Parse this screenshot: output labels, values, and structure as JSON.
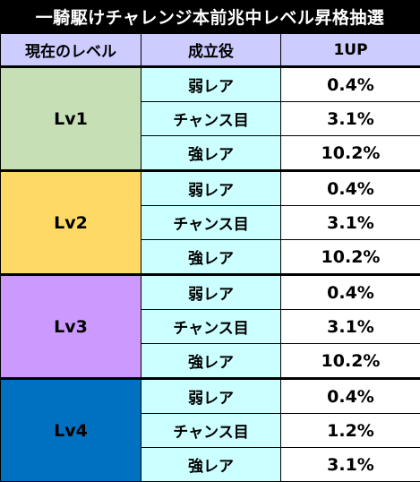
{
  "title": "一騎駆けチャレンジ本前兆中レベル昇格抽選",
  "headers": {
    "level": "現在のレベル",
    "role": "成立役",
    "up": "1UP"
  },
  "groups": [
    {
      "level": "Lv1",
      "color": "#c6dfb4",
      "rows": [
        {
          "role": "弱レア",
          "rate": "0.4%"
        },
        {
          "role": "チャンス目",
          "rate": "3.1%"
        },
        {
          "role": "強レア",
          "rate": "10.2%"
        }
      ]
    },
    {
      "level": "Lv2",
      "color": "#ffd966",
      "rows": [
        {
          "role": "弱レア",
          "rate": "0.4%"
        },
        {
          "role": "チャンス目",
          "rate": "3.1%"
        },
        {
          "role": "強レア",
          "rate": "10.2%"
        }
      ]
    },
    {
      "level": "Lv3",
      "color": "#cc99ff",
      "rows": [
        {
          "role": "弱レア",
          "rate": "0.4%"
        },
        {
          "role": "チャンス目",
          "rate": "3.1%"
        },
        {
          "role": "強レア",
          "rate": "10.2%"
        }
      ]
    },
    {
      "level": "Lv4",
      "color": "#0070c0",
      "rows": [
        {
          "role": "弱レア",
          "rate": "0.4%"
        },
        {
          "role": "チャンス目",
          "rate": "1.2%"
        },
        {
          "role": "強レア",
          "rate": "3.1%"
        }
      ]
    }
  ]
}
